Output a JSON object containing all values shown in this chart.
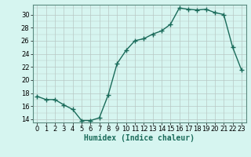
{
  "x": [
    0,
    1,
    2,
    3,
    4,
    5,
    6,
    7,
    8,
    9,
    10,
    11,
    12,
    13,
    14,
    15,
    16,
    17,
    18,
    19,
    20,
    21,
    22,
    23
  ],
  "y": [
    17.5,
    17.0,
    17.0,
    16.2,
    15.5,
    13.8,
    13.8,
    14.2,
    17.7,
    22.5,
    24.5,
    26.0,
    26.3,
    27.0,
    27.5,
    28.5,
    31.0,
    30.8,
    30.7,
    30.8,
    30.3,
    30.0,
    25.0,
    21.5
  ],
  "line_color": "#1a6b5a",
  "marker": "+",
  "markersize": 4,
  "linewidth": 1.0,
  "bg_color": "#d6f5f0",
  "grid_color": "#b8c8c4",
  "xlabel": "Humidex (Indice chaleur)",
  "xlabel_fontsize": 7,
  "yticks": [
    14,
    16,
    18,
    20,
    22,
    24,
    26,
    28,
    30
  ],
  "xtick_labels": [
    "0",
    "1",
    "2",
    "3",
    "4",
    "5",
    "6",
    "7",
    "8",
    "9",
    "10",
    "11",
    "12",
    "13",
    "14",
    "15",
    "16",
    "17",
    "18",
    "19",
    "20",
    "21",
    "22",
    "23"
  ],
  "ylim": [
    13.5,
    31.5
  ],
  "xlim": [
    -0.5,
    23.5
  ],
  "tick_fontsize": 6
}
